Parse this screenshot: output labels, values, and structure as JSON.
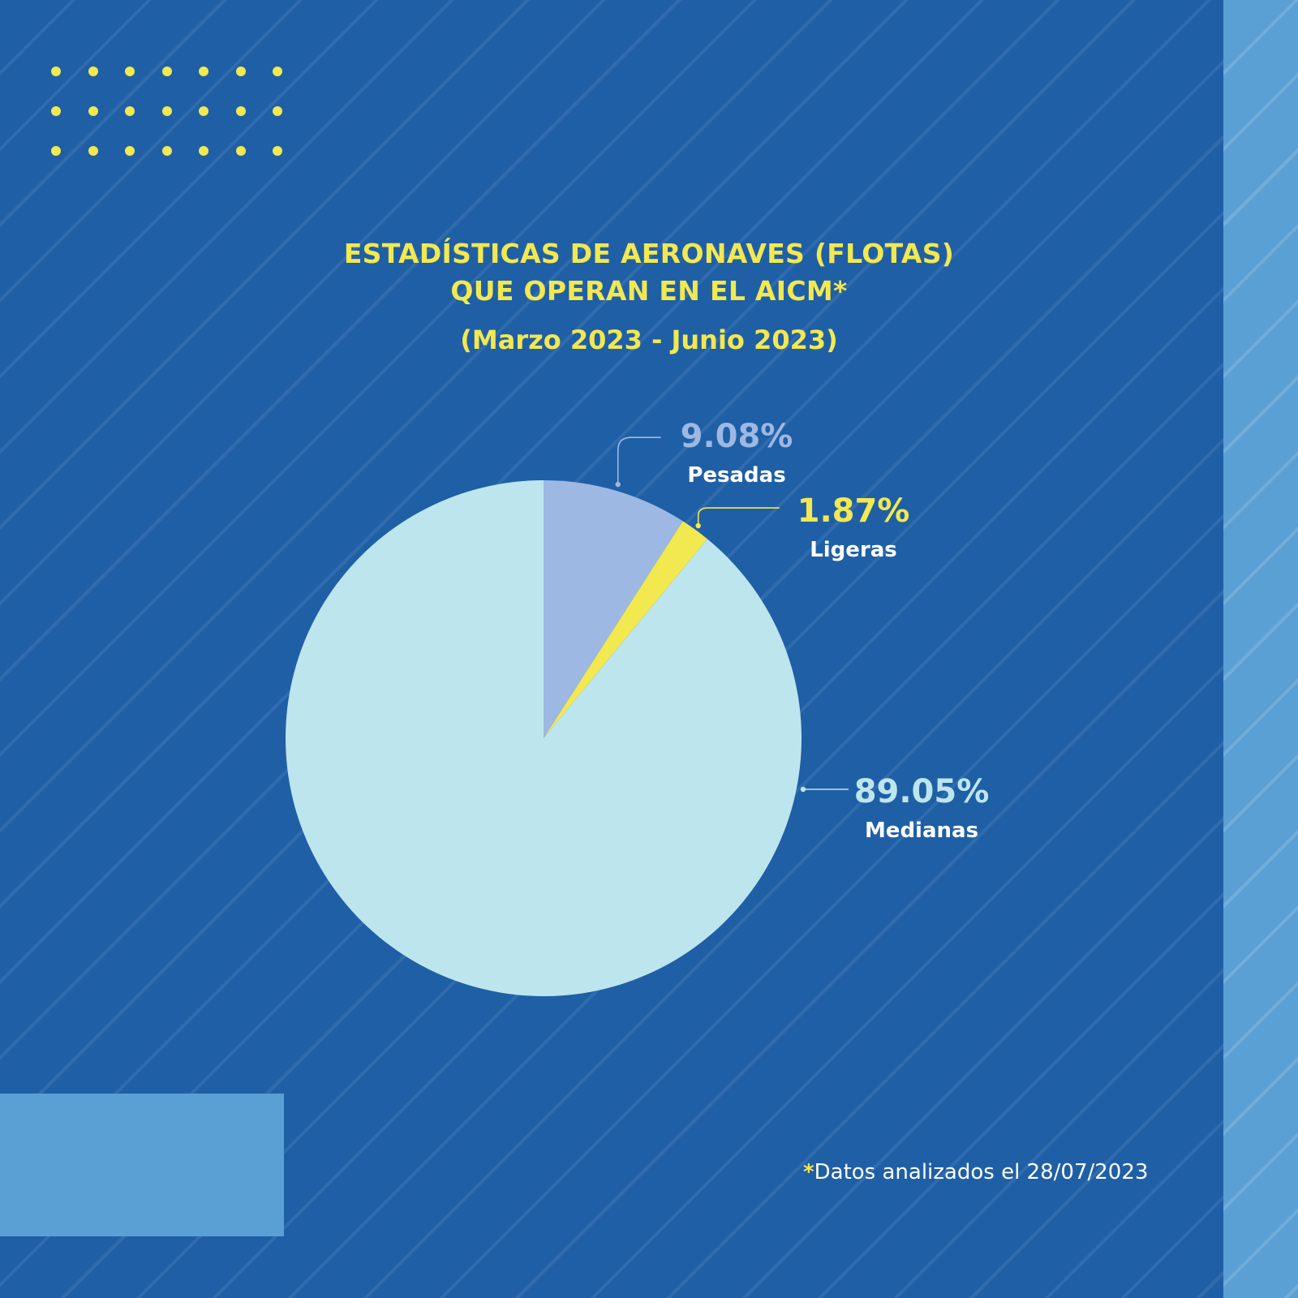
{
  "colors": {
    "background": "#1f5fa6",
    "accent_yellow": "#f2e84f",
    "band": "#5aa0d4",
    "slice_medianas": "#bde5ee",
    "slice_pesadas": "#9db8e2",
    "slice_ligeras": "#f2e84f",
    "label_white": "#ffffff"
  },
  "footnote": {
    "marker": "*",
    "text": "Datos analizados el 28/07/2023"
  },
  "chart_data": {
    "type": "pie",
    "title": [
      "ESTADÍSTICAS DE AERONAVES (FLOTAS)",
      "QUE OPERAN EN EL AICM*"
    ],
    "subtitle": "(Marzo 2023 - Junio 2023)",
    "slices": [
      {
        "name": "Pesadas",
        "value": 9.08,
        "label": "9.08%",
        "color": "#9db8e2",
        "value_color": "#9db8e2"
      },
      {
        "name": "Ligeras",
        "value": 1.87,
        "label": "1.87%",
        "color": "#f2e84f",
        "value_color": "#f2e84f"
      },
      {
        "name": "Medianas",
        "value": 89.05,
        "label": "89.05%",
        "color": "#bde5ee",
        "value_color": "#bde5ee"
      }
    ],
    "start_angle": "12 o'clock",
    "direction": "clockwise",
    "legend": "none (direct labels)"
  }
}
